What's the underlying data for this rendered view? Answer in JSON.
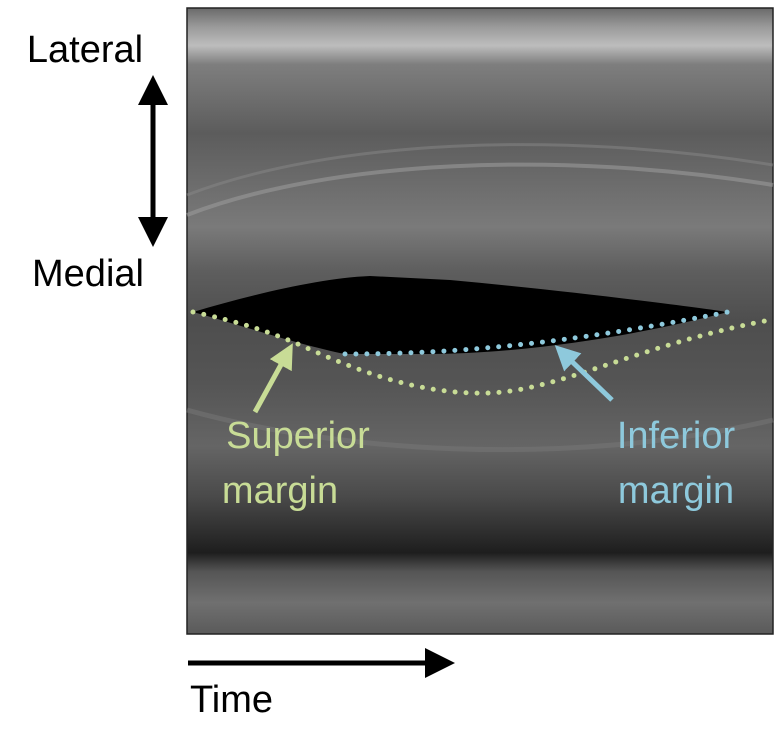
{
  "axes": {
    "lateral": "Lateral",
    "medial": "Medial",
    "time": "Time"
  },
  "annotations": [
    {
      "lines": [
        "Superior",
        "margin"
      ]
    },
    {
      "lines": [
        "Inferior",
        "margin"
      ]
    }
  ]
}
